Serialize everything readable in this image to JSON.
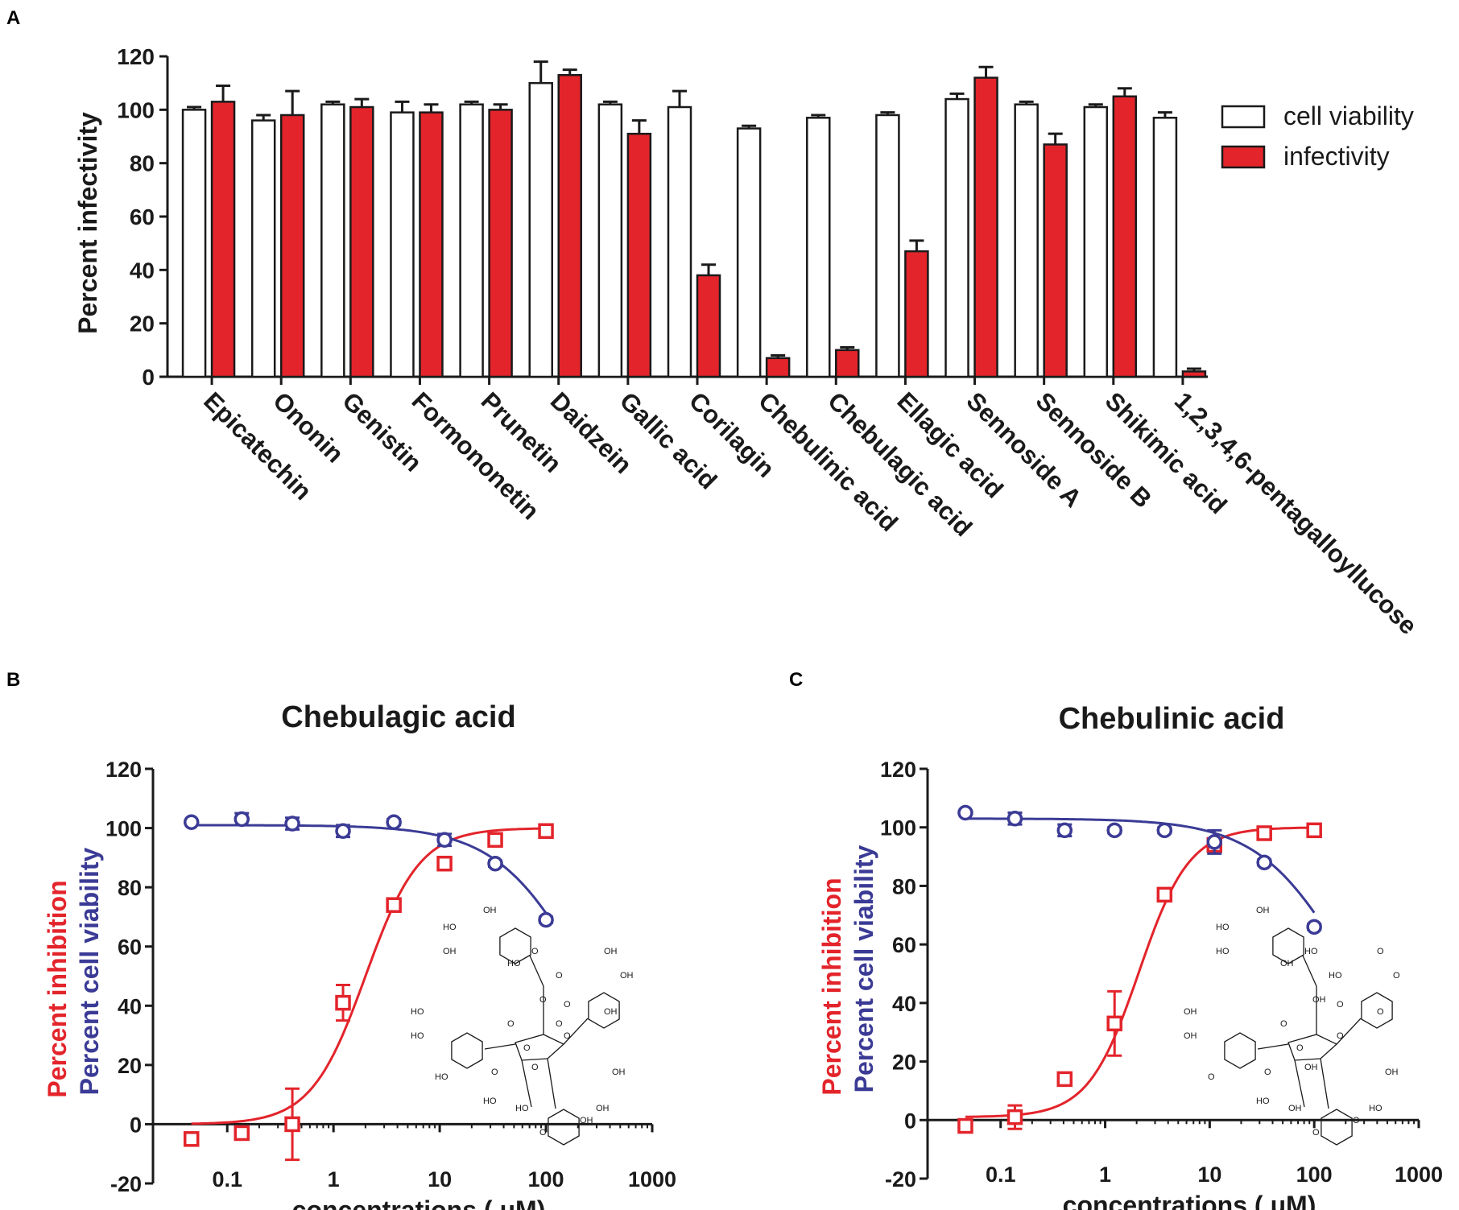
{
  "colors": {
    "red": "#e3242b",
    "blue": "#3b3b96",
    "black": "#1a1a1a",
    "white": "#ffffff",
    "gray": "#555555"
  },
  "chart_data": [
    {
      "type": "bar",
      "panel": "A",
      "ylabel": "Percent infectivity",
      "ylim": [
        0,
        120
      ],
      "yticks": [
        "0",
        "20",
        "40",
        "60",
        "80",
        "100",
        "120"
      ],
      "categories": [
        "Epicatechin",
        "Ononin",
        "Genistin",
        "Formononetin",
        "Prunetin",
        "Daidzein",
        "Gallic acid",
        "Corilagin",
        "Chebulinic acid",
        "Chebulagic acid",
        "Ellagic acid",
        "Sennoside A",
        "Sennoside B",
        "Shikimic acid",
        "1,2,3,4,6-pentagalloyllucose"
      ],
      "series": [
        {
          "name": "cell viability",
          "values": [
            100,
            96,
            102,
            99,
            102,
            110,
            102,
            101,
            93,
            97,
            98,
            104,
            102,
            101,
            97
          ],
          "errors": [
            1,
            2,
            1,
            4,
            1,
            8,
            1,
            6,
            1,
            1,
            1,
            2,
            1,
            1,
            2
          ]
        },
        {
          "name": "infectivity",
          "values": [
            103,
            98,
            101,
            99,
            100,
            113,
            91,
            38,
            7,
            10,
            47,
            112,
            87,
            105,
            2
          ],
          "errors": [
            6,
            9,
            3,
            3,
            2,
            2,
            5,
            4,
            1,
            1,
            4,
            4,
            4,
            3,
            1
          ]
        }
      ],
      "legend": [
        "cell viability",
        "infectivity"
      ]
    },
    {
      "type": "scatter",
      "panel": "B",
      "title": "Chebulagic acid",
      "xlabel": "concentrations ( μM)",
      "ylabel_inhibition": "Percent inhibition",
      "ylabel_viability": "Percent cell viability",
      "xscale": "log",
      "xlim": [
        0.02,
        1000
      ],
      "ylim": [
        -20,
        120
      ],
      "xticks": [
        "0.1",
        "1",
        "10",
        "100",
        "1000"
      ],
      "yticks": [
        "-20",
        "0",
        "20",
        "40",
        "60",
        "80",
        "100",
        "120"
      ],
      "series": [
        {
          "name": "Percent inhibition",
          "x": [
            0.046,
            0.137,
            0.41,
            1.23,
            3.7,
            11.1,
            33.3,
            100
          ],
          "y": [
            -5,
            -3,
            0,
            41,
            74,
            88,
            96,
            99
          ],
          "errors": [
            0,
            0,
            12,
            6,
            0,
            2,
            1,
            1
          ],
          "fit": {
            "bottom": 0,
            "top": 100,
            "ec50": 2.0,
            "hill": 1.7
          }
        },
        {
          "name": "Percent cell viability",
          "x": [
            0.046,
            0.137,
            0.41,
            1.23,
            3.7,
            11.1,
            33.3,
            100
          ],
          "y": [
            102,
            103,
            101.5,
            99,
            102,
            96,
            88,
            69
          ],
          "errors": [
            0,
            2,
            2,
            2,
            1,
            2,
            1,
            1
          ],
          "fit": {
            "bottom": 0,
            "top": 101,
            "ec50": 230,
            "hill": 1.05
          }
        }
      ]
    },
    {
      "type": "scatter",
      "panel": "C",
      "title": "Chebulinic acid",
      "xlabel": "concentrations ( μM)",
      "ylabel_inhibition": "Percent inhibition",
      "ylabel_viability": "Percent cell viability",
      "xscale": "log",
      "xlim": [
        0.02,
        1000
      ],
      "ylim": [
        -20,
        120
      ],
      "xticks": [
        "0.1",
        "1",
        "10",
        "100",
        "1000"
      ],
      "yticks": [
        "-20",
        "0",
        "20",
        "40",
        "60",
        "80",
        "100",
        "120"
      ],
      "series": [
        {
          "name": "Percent inhibition",
          "x": [
            0.046,
            0.137,
            0.41,
            1.23,
            3.7,
            11.1,
            33.3,
            100
          ],
          "y": [
            -2,
            1,
            14,
            33,
            77,
            94,
            98,
            99
          ],
          "errors": [
            0,
            4,
            1,
            11,
            1,
            2,
            1,
            1
          ],
          "fit": {
            "bottom": 1,
            "top": 100,
            "ec50": 2.1,
            "hill": 1.8
          }
        },
        {
          "name": "Percent cell viability",
          "x": [
            0.046,
            0.137,
            0.41,
            1.23,
            3.7,
            11.1,
            33.3,
            100
          ],
          "y": [
            105,
            103,
            99,
            99,
            99,
            95,
            88,
            66
          ],
          "errors": [
            0,
            2,
            2,
            1,
            1,
            4,
            1,
            1
          ],
          "fit": {
            "bottom": 0,
            "top": 103,
            "ec50": 220,
            "hill": 1.0
          }
        }
      ]
    }
  ],
  "panels": {
    "a": "A",
    "b": "B",
    "c": "C"
  },
  "structure_b": {
    "labels": [
      "OH",
      "HO",
      "OH",
      "HO",
      "O",
      "O",
      "OH",
      "OH",
      "OH",
      "O",
      "O",
      "HO",
      "HO",
      "HO",
      "O",
      "O",
      "O",
      "O",
      "O",
      "OH",
      "OH",
      "HO",
      "HO",
      "OH",
      "O",
      "O"
    ]
  },
  "structure_c": {
    "labels": [
      "OH",
      "HO",
      "HO",
      "OH",
      "HO",
      "HO",
      "O",
      "O",
      "O",
      "O",
      "OH",
      "OH",
      "OH",
      "O",
      "O",
      "O",
      "O",
      "O",
      "OH",
      "OH",
      "HO",
      "HO",
      "OH",
      "O",
      "O"
    ]
  }
}
